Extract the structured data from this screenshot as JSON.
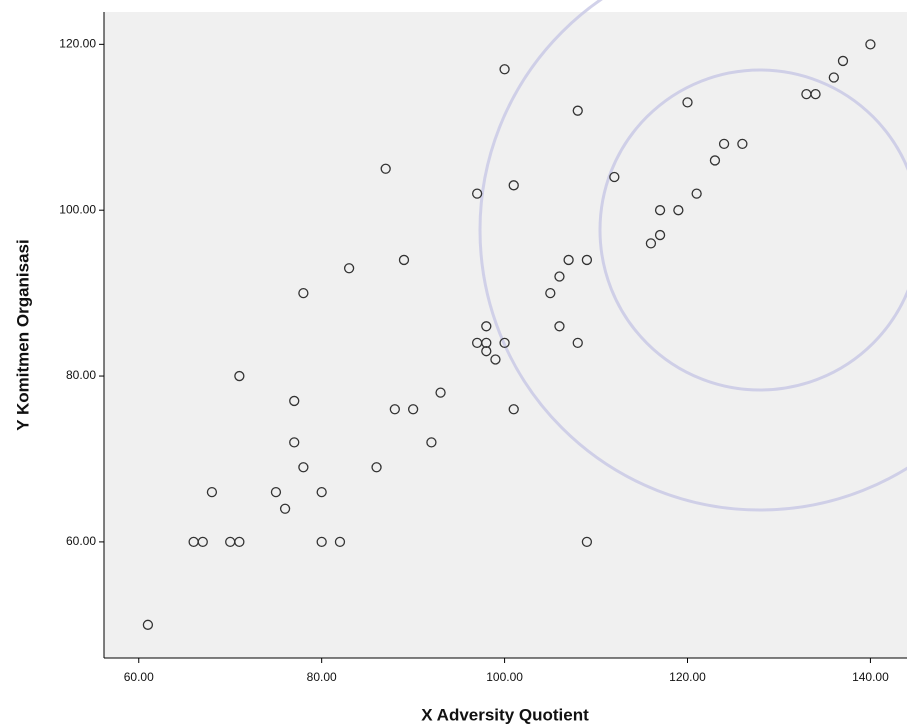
{
  "chart_data": {
    "type": "scatter",
    "x_label": "X Adversity Quotient",
    "y_label": "Y Komitmen Organisasi",
    "xlim": [
      56.2,
      144
    ],
    "ylim": [
      46,
      123.9
    ],
    "xticks": [
      {
        "value": 60,
        "label": "60.00"
      },
      {
        "value": 80,
        "label": "80.00"
      },
      {
        "value": 100,
        "label": "100.00"
      },
      {
        "value": 120,
        "label": "120.00"
      },
      {
        "value": 140,
        "label": "140.00"
      }
    ],
    "yticks": [
      {
        "value": 60,
        "label": "60.00"
      },
      {
        "value": 80,
        "label": "80.00"
      },
      {
        "value": 100,
        "label": "100.00"
      },
      {
        "value": 120,
        "label": "120.00"
      }
    ],
    "color": "#333333",
    "x": [
      61,
      66,
      67,
      70,
      71,
      68,
      75,
      76,
      71,
      77,
      77,
      78,
      80,
      80,
      82,
      78,
      83,
      87,
      89,
      86,
      88,
      90,
      92,
      93,
      97,
      100,
      101,
      97,
      98,
      98,
      98,
      99,
      100,
      101,
      109,
      105,
      106,
      106,
      107,
      108,
      108,
      109,
      112,
      116,
      117,
      117,
      119,
      120,
      121,
      123,
      124,
      126,
      133,
      134,
      136,
      137,
      140
    ],
    "values": [
      50,
      60,
      60,
      60,
      60,
      66,
      66,
      64,
      80,
      77,
      72,
      69,
      66,
      60,
      60,
      90,
      93,
      105,
      94,
      69,
      76,
      76,
      72,
      78,
      102,
      117,
      103,
      84,
      84,
      86,
      83,
      82,
      84,
      76,
      60,
      90,
      92,
      86,
      94,
      84,
      112,
      94,
      104,
      96,
      97,
      100,
      100,
      113,
      102,
      106,
      108,
      108,
      114,
      114,
      116,
      118,
      120
    ]
  }
}
